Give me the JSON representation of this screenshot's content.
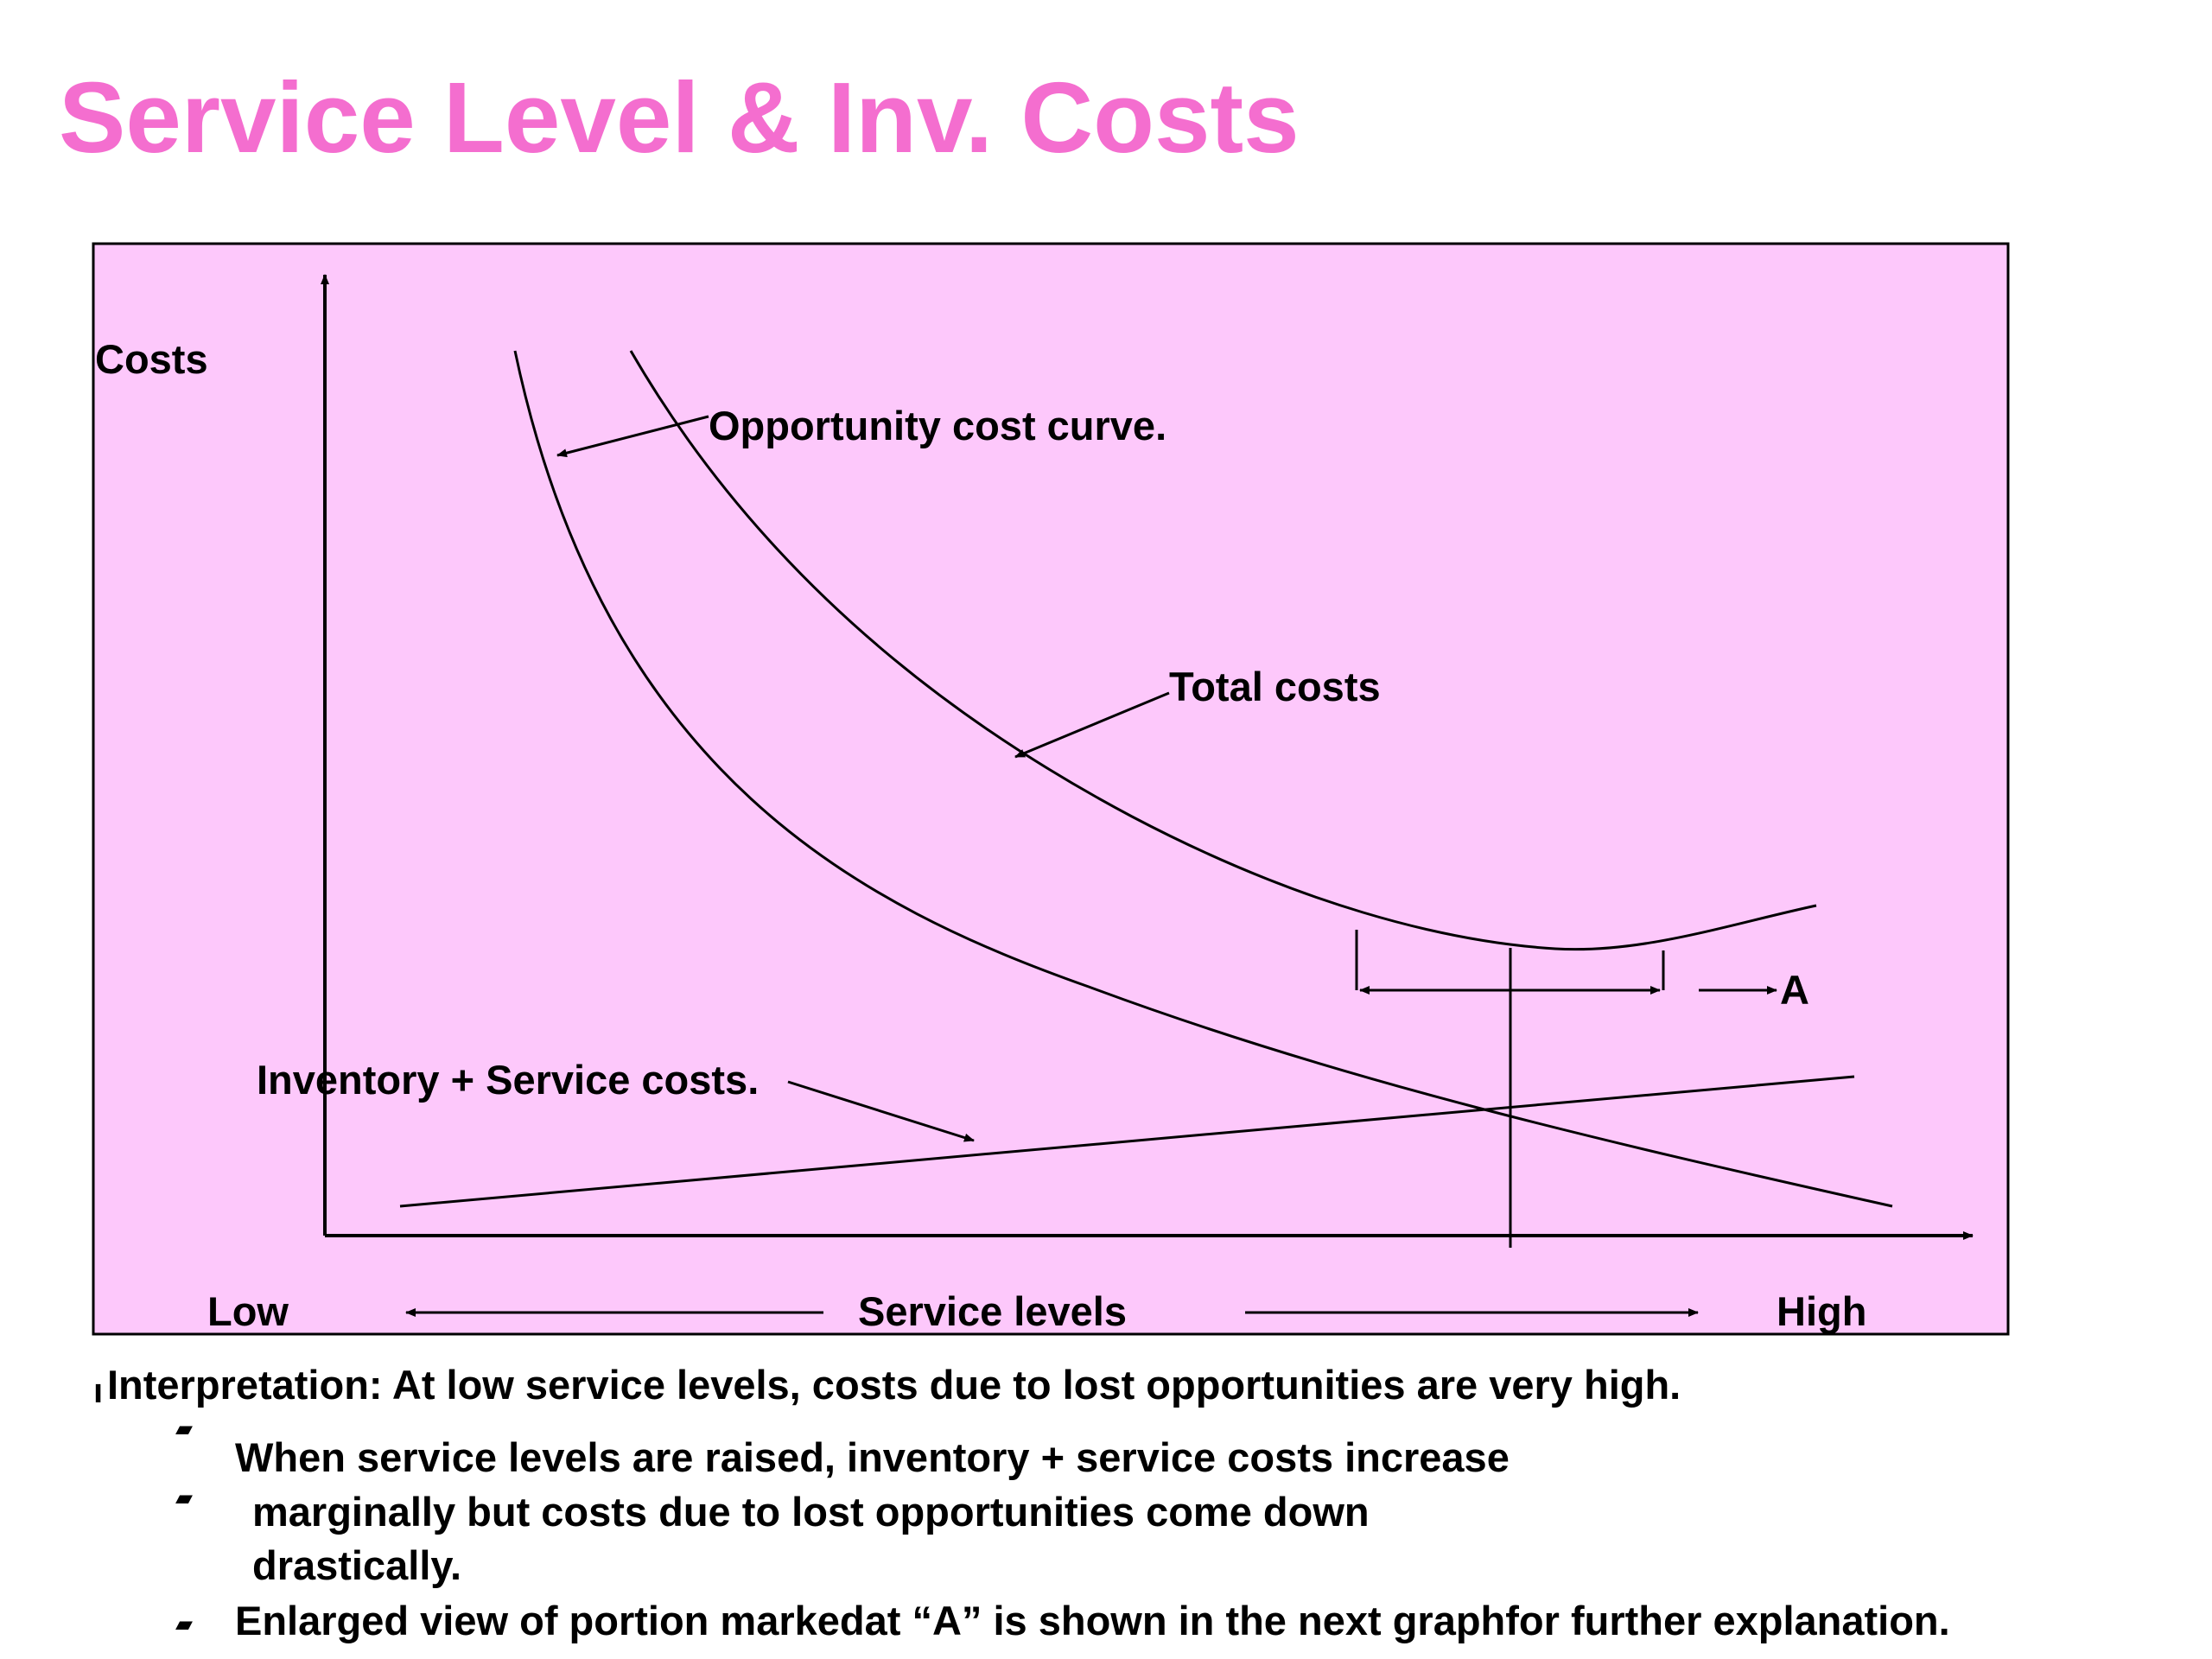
{
  "slide": {
    "title": "Service Level & Inv. Costs"
  },
  "colors": {
    "title": "#f46ecf",
    "chart_background": "#fdc8fb",
    "ink": "#000000"
  },
  "diagram": {
    "y_axis_label": "Costs",
    "x_axis_low": "Low",
    "x_axis_center": "Service levels",
    "x_axis_high": "High",
    "labels": {
      "opportunity": "Opportunity cost curve.",
      "total": "Total costs",
      "inventory": "Inventory + Service costs.",
      "marker": "A"
    }
  },
  "interpretation": {
    "marker": "ı",
    "lead": "Interpretation: At low service levels, costs due to lost opportunities are very high.",
    "bullets": [
      {
        "icon": "clapperboard-icon",
        "glyph": "▰"
      },
      {
        "icon": "clapperboard-icon",
        "glyph": "▰"
      },
      {
        "icon": "clapperboard-icon",
        "glyph": "▰"
      }
    ],
    "lines": [
      "When service levels are raised, inventory + service costs increase",
      "marginally but costs due to lost opportunities come down",
      "drastically.",
      "Enlarged view of portion markedat “A” is shown in the next graphfor further explanation."
    ]
  }
}
